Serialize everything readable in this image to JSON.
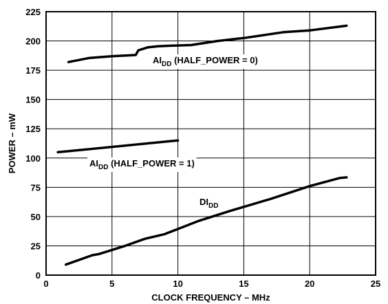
{
  "chart_data": {
    "type": "line",
    "title": "",
    "xlabel": "CLOCK FREQUENCY – MHz",
    "ylabel": "POWER – mW",
    "xlim": [
      0,
      25
    ],
    "ylim": [
      0,
      225
    ],
    "xticks": [
      0,
      5,
      10,
      15,
      20,
      25
    ],
    "yticks": [
      0,
      25,
      50,
      75,
      100,
      125,
      150,
      175,
      200,
      225
    ],
    "grid": true,
    "legend": "none",
    "series": [
      {
        "label_parts": [
          "AI",
          "DD",
          " (HALF_POWER = 0)"
        ],
        "x": [
          1.7,
          3.3,
          5,
          6.8,
          7,
          7.7,
          8.5,
          9.5,
          11,
          13,
          15,
          18,
          20,
          22.8
        ],
        "y": [
          182,
          185.5,
          187,
          188,
          192,
          194.5,
          195.5,
          196,
          196.5,
          200,
          202.5,
          207.5,
          209,
          213
        ]
      },
      {
        "label_parts": [
          "AI",
          "DD",
          " (HALF_POWER = 1)"
        ],
        "x": [
          0.9,
          10
        ],
        "y": [
          105,
          115
        ]
      },
      {
        "label_parts": [
          "DI",
          "DD",
          ""
        ],
        "x": [
          1.5,
          3.5,
          4,
          6,
          7.5,
          9,
          11.5,
          14,
          17,
          20,
          22.3,
          22.8
        ],
        "y": [
          9,
          17,
          18,
          25,
          31,
          35,
          46,
          55,
          65,
          76,
          83,
          83.5
        ]
      }
    ]
  }
}
